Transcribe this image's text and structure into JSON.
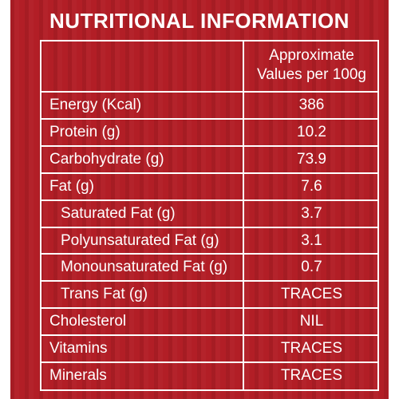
{
  "title": "NUTRITIONAL INFORMATION",
  "header": {
    "line1": "Approximate",
    "line2": "Values per 100g"
  },
  "rows": [
    {
      "label": "Energy (Kcal)",
      "value": "386",
      "indent": 0
    },
    {
      "label": "Protein (g)",
      "value": "10.2",
      "indent": 0
    },
    {
      "label": "Carbohydrate (g)",
      "value": "73.9",
      "indent": 0
    },
    {
      "label": "Fat (g)",
      "value": "7.6",
      "indent": 0
    },
    {
      "label": "Saturated Fat (g)",
      "value": "3.7",
      "indent": 1
    },
    {
      "label": "Polyunsaturated Fat (g)",
      "value": "3.1",
      "indent": 1
    },
    {
      "label": "Monounsaturated Fat (g)",
      "value": "0.7",
      "indent": 1
    },
    {
      "label": "Trans Fat (g)",
      "value": "TRACES",
      "indent": 1
    },
    {
      "label": "Cholesterol",
      "value": "NIL",
      "indent": 0
    },
    {
      "label": "Vitamins",
      "value": "TRACES",
      "indent": 0
    },
    {
      "label": "Minerals",
      "value": "TRACES",
      "indent": 0
    }
  ],
  "colors": {
    "background": "#b21e26",
    "text": "#ffffff"
  }
}
